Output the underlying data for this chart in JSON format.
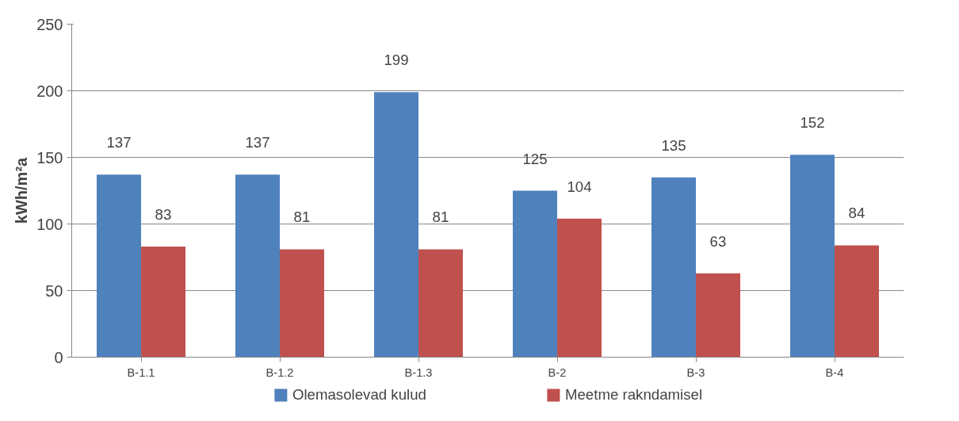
{
  "chart_data": {
    "type": "bar",
    "ylabel": "kWh/m²a",
    "categories": [
      "B-1.1",
      "B-1.2",
      "B-1.3",
      "B-2",
      "B-3",
      "B-4"
    ],
    "series": [
      {
        "name": "Olemasolevad kulud",
        "color": "#4f81bd",
        "values": [
          137,
          137,
          199,
          125,
          135,
          152
        ]
      },
      {
        "name": "Meetme rakndamisel",
        "color": "#c0504d",
        "values": [
          83,
          81,
          81,
          104,
          63,
          84
        ]
      }
    ],
    "ylim": [
      0,
      250
    ],
    "yticks": [
      0,
      50,
      100,
      150,
      200,
      250
    ],
    "grid": "y",
    "legend": "bottom",
    "data_labels": true
  }
}
